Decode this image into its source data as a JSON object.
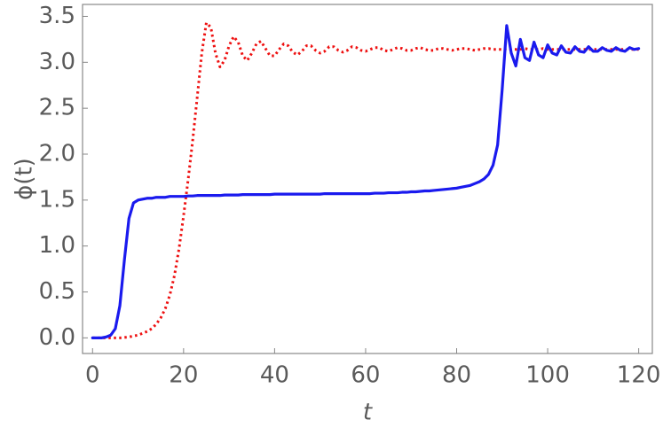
{
  "chart_data": {
    "type": "line",
    "xlabel": "t",
    "ylabel": "ϕ(t)",
    "xlim": [
      -2.2,
      123
    ],
    "ylim": [
      -0.17,
      3.63
    ],
    "xticks": [
      0,
      20,
      40,
      60,
      80,
      100,
      120
    ],
    "yticks": [
      {
        "value": 0,
        "label": "0.0"
      },
      0.5,
      {
        "value": 1,
        "label": "1.0"
      },
      1.5,
      {
        "value": 2,
        "label": "2.0"
      },
      2.5,
      {
        "value": 3,
        "label": "3.0"
      },
      3.5
    ],
    "grid": false,
    "x": [
      0,
      1,
      2,
      3,
      4,
      5,
      6,
      7,
      8,
      9,
      10,
      11,
      12,
      13,
      14,
      15,
      16,
      17,
      18,
      19,
      20,
      21,
      22,
      23,
      24,
      25,
      26,
      27,
      28,
      29,
      30,
      31,
      32,
      33,
      34,
      35,
      36,
      37,
      38,
      39,
      40,
      41,
      42,
      43,
      44,
      45,
      46,
      47,
      48,
      49,
      50,
      51,
      52,
      53,
      54,
      55,
      56,
      57,
      58,
      59,
      60,
      61,
      62,
      63,
      64,
      65,
      66,
      67,
      68,
      69,
      70,
      71,
      72,
      73,
      74,
      75,
      76,
      77,
      78,
      79,
      80,
      81,
      82,
      83,
      84,
      85,
      86,
      87,
      88,
      89,
      90,
      91,
      92,
      93,
      94,
      95,
      96,
      97,
      98,
      99,
      100,
      101,
      102,
      103,
      104,
      105,
      106,
      107,
      108,
      109,
      110,
      111,
      112,
      113,
      114,
      115,
      116,
      117,
      118,
      119,
      120
    ],
    "series": [
      {
        "color": "#1a1aee",
        "dash": false,
        "values": [
          0,
          0,
          0,
          0.01,
          0.03,
          0.1,
          0.35,
          0.85,
          1.3,
          1.47,
          1.5,
          1.51,
          1.52,
          1.52,
          1.53,
          1.53,
          1.53,
          1.54,
          1.54,
          1.54,
          1.54,
          1.545,
          1.545,
          1.55,
          1.55,
          1.55,
          1.55,
          1.55,
          1.55,
          1.555,
          1.555,
          1.555,
          1.555,
          1.56,
          1.56,
          1.56,
          1.56,
          1.56,
          1.56,
          1.56,
          1.565,
          1.565,
          1.565,
          1.565,
          1.565,
          1.565,
          1.565,
          1.565,
          1.565,
          1.565,
          1.565,
          1.57,
          1.57,
          1.57,
          1.57,
          1.57,
          1.57,
          1.57,
          1.57,
          1.57,
          1.57,
          1.57,
          1.575,
          1.575,
          1.575,
          1.58,
          1.58,
          1.58,
          1.585,
          1.585,
          1.59,
          1.59,
          1.595,
          1.6,
          1.6,
          1.605,
          1.61,
          1.615,
          1.62,
          1.625,
          1.63,
          1.64,
          1.65,
          1.66,
          1.68,
          1.7,
          1.73,
          1.78,
          1.88,
          2.1,
          2.7,
          3.4,
          3.1,
          2.96,
          3.25,
          3.05,
          3.02,
          3.22,
          3.08,
          3.05,
          3.19,
          3.1,
          3.08,
          3.18,
          3.11,
          3.1,
          3.17,
          3.12,
          3.11,
          3.17,
          3.12,
          3.12,
          3.16,
          3.13,
          3.12,
          3.16,
          3.13,
          3.12,
          3.16,
          3.14,
          3.15
        ]
      },
      {
        "color": "#ee1111",
        "dash": true,
        "values": [
          0,
          0,
          0,
          0,
          0,
          0,
          0,
          0.005,
          0.01,
          0.02,
          0.03,
          0.05,
          0.07,
          0.1,
          0.15,
          0.22,
          0.32,
          0.47,
          0.68,
          0.97,
          1.33,
          1.72,
          2.15,
          2.62,
          3.1,
          3.43,
          3.38,
          3.1,
          2.95,
          3.02,
          3.18,
          3.28,
          3.22,
          3.07,
          3.02,
          3.1,
          3.2,
          3.23,
          3.15,
          3.07,
          3.07,
          3.14,
          3.2,
          3.18,
          3.11,
          3.08,
          3.12,
          3.18,
          3.18,
          3.13,
          3.1,
          3.12,
          3.17,
          3.17,
          3.13,
          3.11,
          3.13,
          3.17,
          3.16,
          3.13,
          3.12,
          3.14,
          3.16,
          3.16,
          3.13,
          3.12,
          3.14,
          3.16,
          3.15,
          3.13,
          3.13,
          3.15,
          3.16,
          3.14,
          3.13,
          3.13,
          3.15,
          3.15,
          3.14,
          3.13,
          3.14,
          3.15,
          3.15,
          3.14,
          3.13,
          3.14,
          3.15,
          3.15,
          3.14,
          3.14,
          3.14,
          3.15,
          3.14,
          3.14,
          3.14,
          3.15,
          3.14,
          3.14,
          3.14,
          3.15,
          3.14,
          3.14,
          3.14,
          3.14,
          3.14,
          3.14,
          3.14,
          3.14,
          3.14,
          3.14,
          3.14,
          3.14,
          3.14,
          3.14,
          3.14,
          3.14,
          3.14,
          3.14,
          3.14,
          3.14,
          3.14
        ]
      }
    ]
  }
}
